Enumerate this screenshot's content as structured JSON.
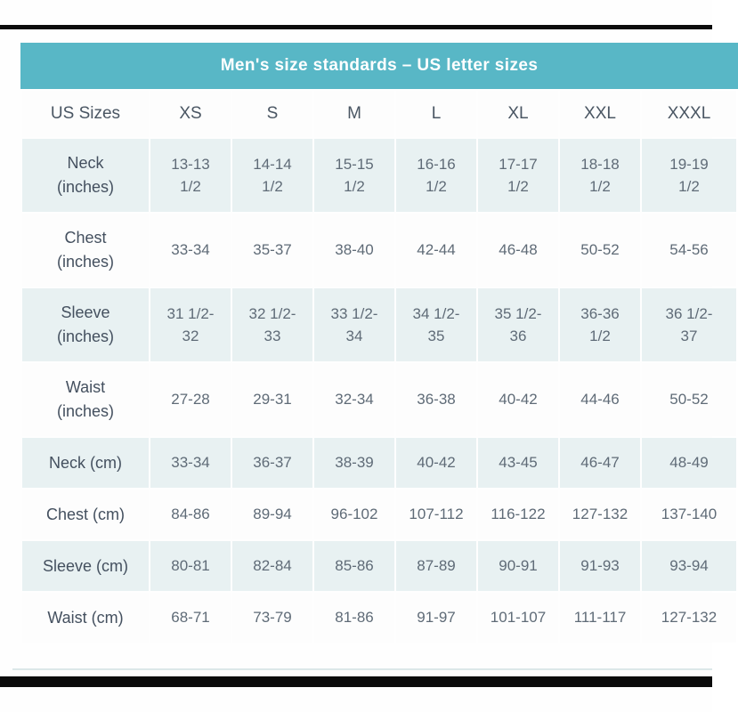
{
  "page": {
    "title_bar": "Men's size standards – US letter sizes"
  },
  "colors": {
    "header_teal": "#58b7c6",
    "tinted_row": "#e8f1f2",
    "white_row": "#fdfdfd",
    "label_text": "#44505f",
    "value_text": "#5f6b77",
    "title_text": "#ffffff",
    "border_black": "#0c0c0c"
  },
  "table": {
    "columns": [
      "US Sizes",
      "XS",
      "S",
      "M",
      "L",
      "XL",
      "XXL",
      "XXXL"
    ],
    "rows": [
      {
        "label": "Neck\n(inches)",
        "values": [
          "13-13\n1/2",
          "14-14\n1/2",
          "15-15\n1/2",
          "16-16\n1/2",
          "17-17\n1/2",
          "18-18\n1/2",
          "19-19\n1/2"
        ]
      },
      {
        "label": "Chest\n(inches)",
        "values": [
          "33-34",
          "35-37",
          "38-40",
          "42-44",
          "46-48",
          "50-52",
          "54-56"
        ]
      },
      {
        "label": "Sleeve\n(inches)",
        "values": [
          "31 1/2-\n32",
          "32 1/2-\n33",
          "33 1/2-\n34",
          "34 1/2-\n35",
          "35 1/2-\n36",
          "36-36\n1/2",
          "36 1/2-\n37"
        ]
      },
      {
        "label": "Waist\n(inches)",
        "values": [
          "27-28",
          "29-31",
          "32-34",
          "36-38",
          "40-42",
          "44-46",
          "50-52"
        ]
      },
      {
        "label": "Neck (cm)",
        "values": [
          "33-34",
          "36-37",
          "38-39",
          "40-42",
          "43-45",
          "46-47",
          "48-49"
        ]
      },
      {
        "label": "Chest (cm)",
        "values": [
          "84-86",
          "89-94",
          "96-102",
          "107-112",
          "116-122",
          "127-132",
          "137-140"
        ]
      },
      {
        "label": "Sleeve (cm)",
        "values": [
          "80-81",
          "82-84",
          "85-86",
          "87-89",
          "90-91",
          "91-93",
          "93-94"
        ]
      },
      {
        "label": "Waist (cm)",
        "values": [
          "68-71",
          "73-79",
          "81-86",
          "91-97",
          "101-107",
          "111-117",
          "127-132"
        ]
      }
    ]
  }
}
